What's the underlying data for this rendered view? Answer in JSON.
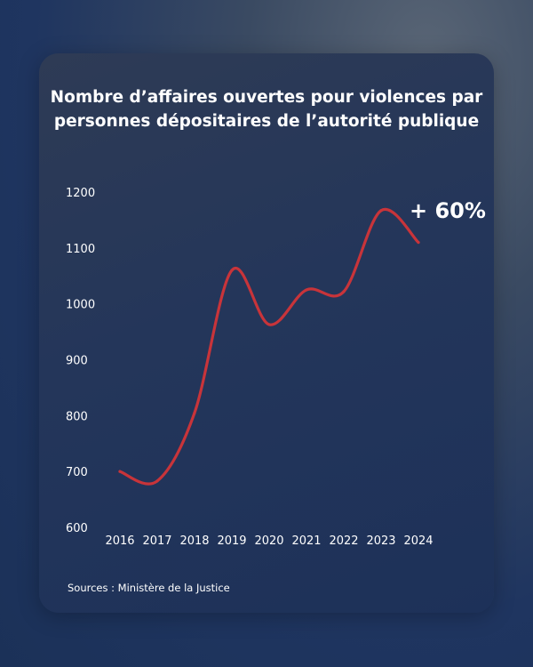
{
  "chart_data": {
    "type": "line",
    "title_lines": [
      "Nombre d’affaires ouvertes pour violences par",
      "personnes dépositaires de l’autorité publique"
    ],
    "x": [
      "2016",
      "2017",
      "2018",
      "2019",
      "2020",
      "2021",
      "2022",
      "2023",
      "2024"
    ],
    "series": [
      {
        "values": [
          700,
          683,
          805,
          1060,
          963,
          1025,
          1022,
          1167,
          1110
        ]
      }
    ],
    "yticks": [
      "600",
      "700",
      "800",
      "900",
      "1000",
      "1100",
      "1200"
    ],
    "ylim": [
      600,
      1200
    ],
    "annotation": "+ 60%",
    "line_color": "#c8343a",
    "grid": false
  },
  "source": "Sources : Ministère de la Justice"
}
